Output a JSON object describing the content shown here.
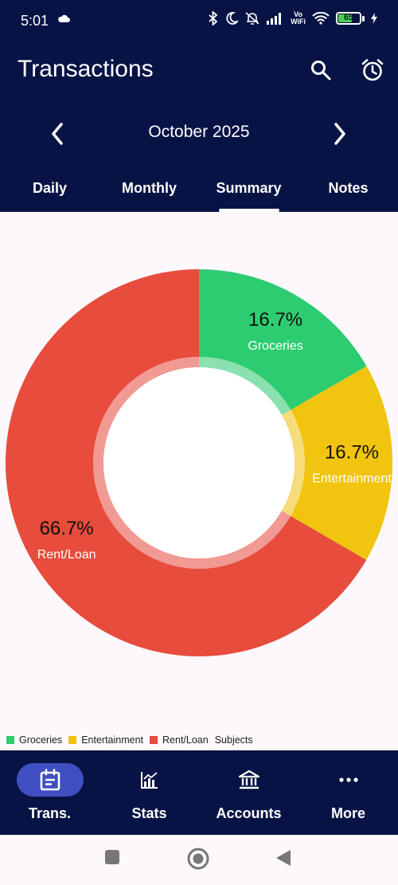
{
  "status_bar": {
    "time": "5:01",
    "battery": "65",
    "battery_level": 0.65,
    "network_label_top": "Vo",
    "network_label_bottom": "WiFi"
  },
  "header": {
    "title": "Transactions",
    "search_icon": "search-icon",
    "alarm_icon": "alarm-icon"
  },
  "month_nav": {
    "label": "October 2025"
  },
  "tabs": [
    {
      "label": "Daily",
      "active": false
    },
    {
      "label": "Monthly",
      "active": false
    },
    {
      "label": "Summary",
      "active": true
    },
    {
      "label": "Notes",
      "active": false
    }
  ],
  "chart_data": {
    "type": "pie",
    "donut": true,
    "categories": [
      "Groceries",
      "Entertainment",
      "Rent/Loan"
    ],
    "values": [
      16.7,
      16.7,
      66.7
    ],
    "value_labels": [
      "16.7%",
      "16.7%",
      "66.7%"
    ],
    "colors": [
      "#2ecc71",
      "#f1c40f",
      "#e74c3c"
    ],
    "legend": {
      "placement": "bottom-left",
      "suffix": "Subjects"
    }
  },
  "bottom_nav": [
    {
      "label": "Trans.",
      "icon": "calendar-icon",
      "active": true
    },
    {
      "label": "Stats",
      "icon": "chart-icon",
      "active": false
    },
    {
      "label": "Accounts",
      "icon": "bank-icon",
      "active": false
    },
    {
      "label": "More",
      "icon": "more-dots-icon",
      "active": false
    }
  ]
}
